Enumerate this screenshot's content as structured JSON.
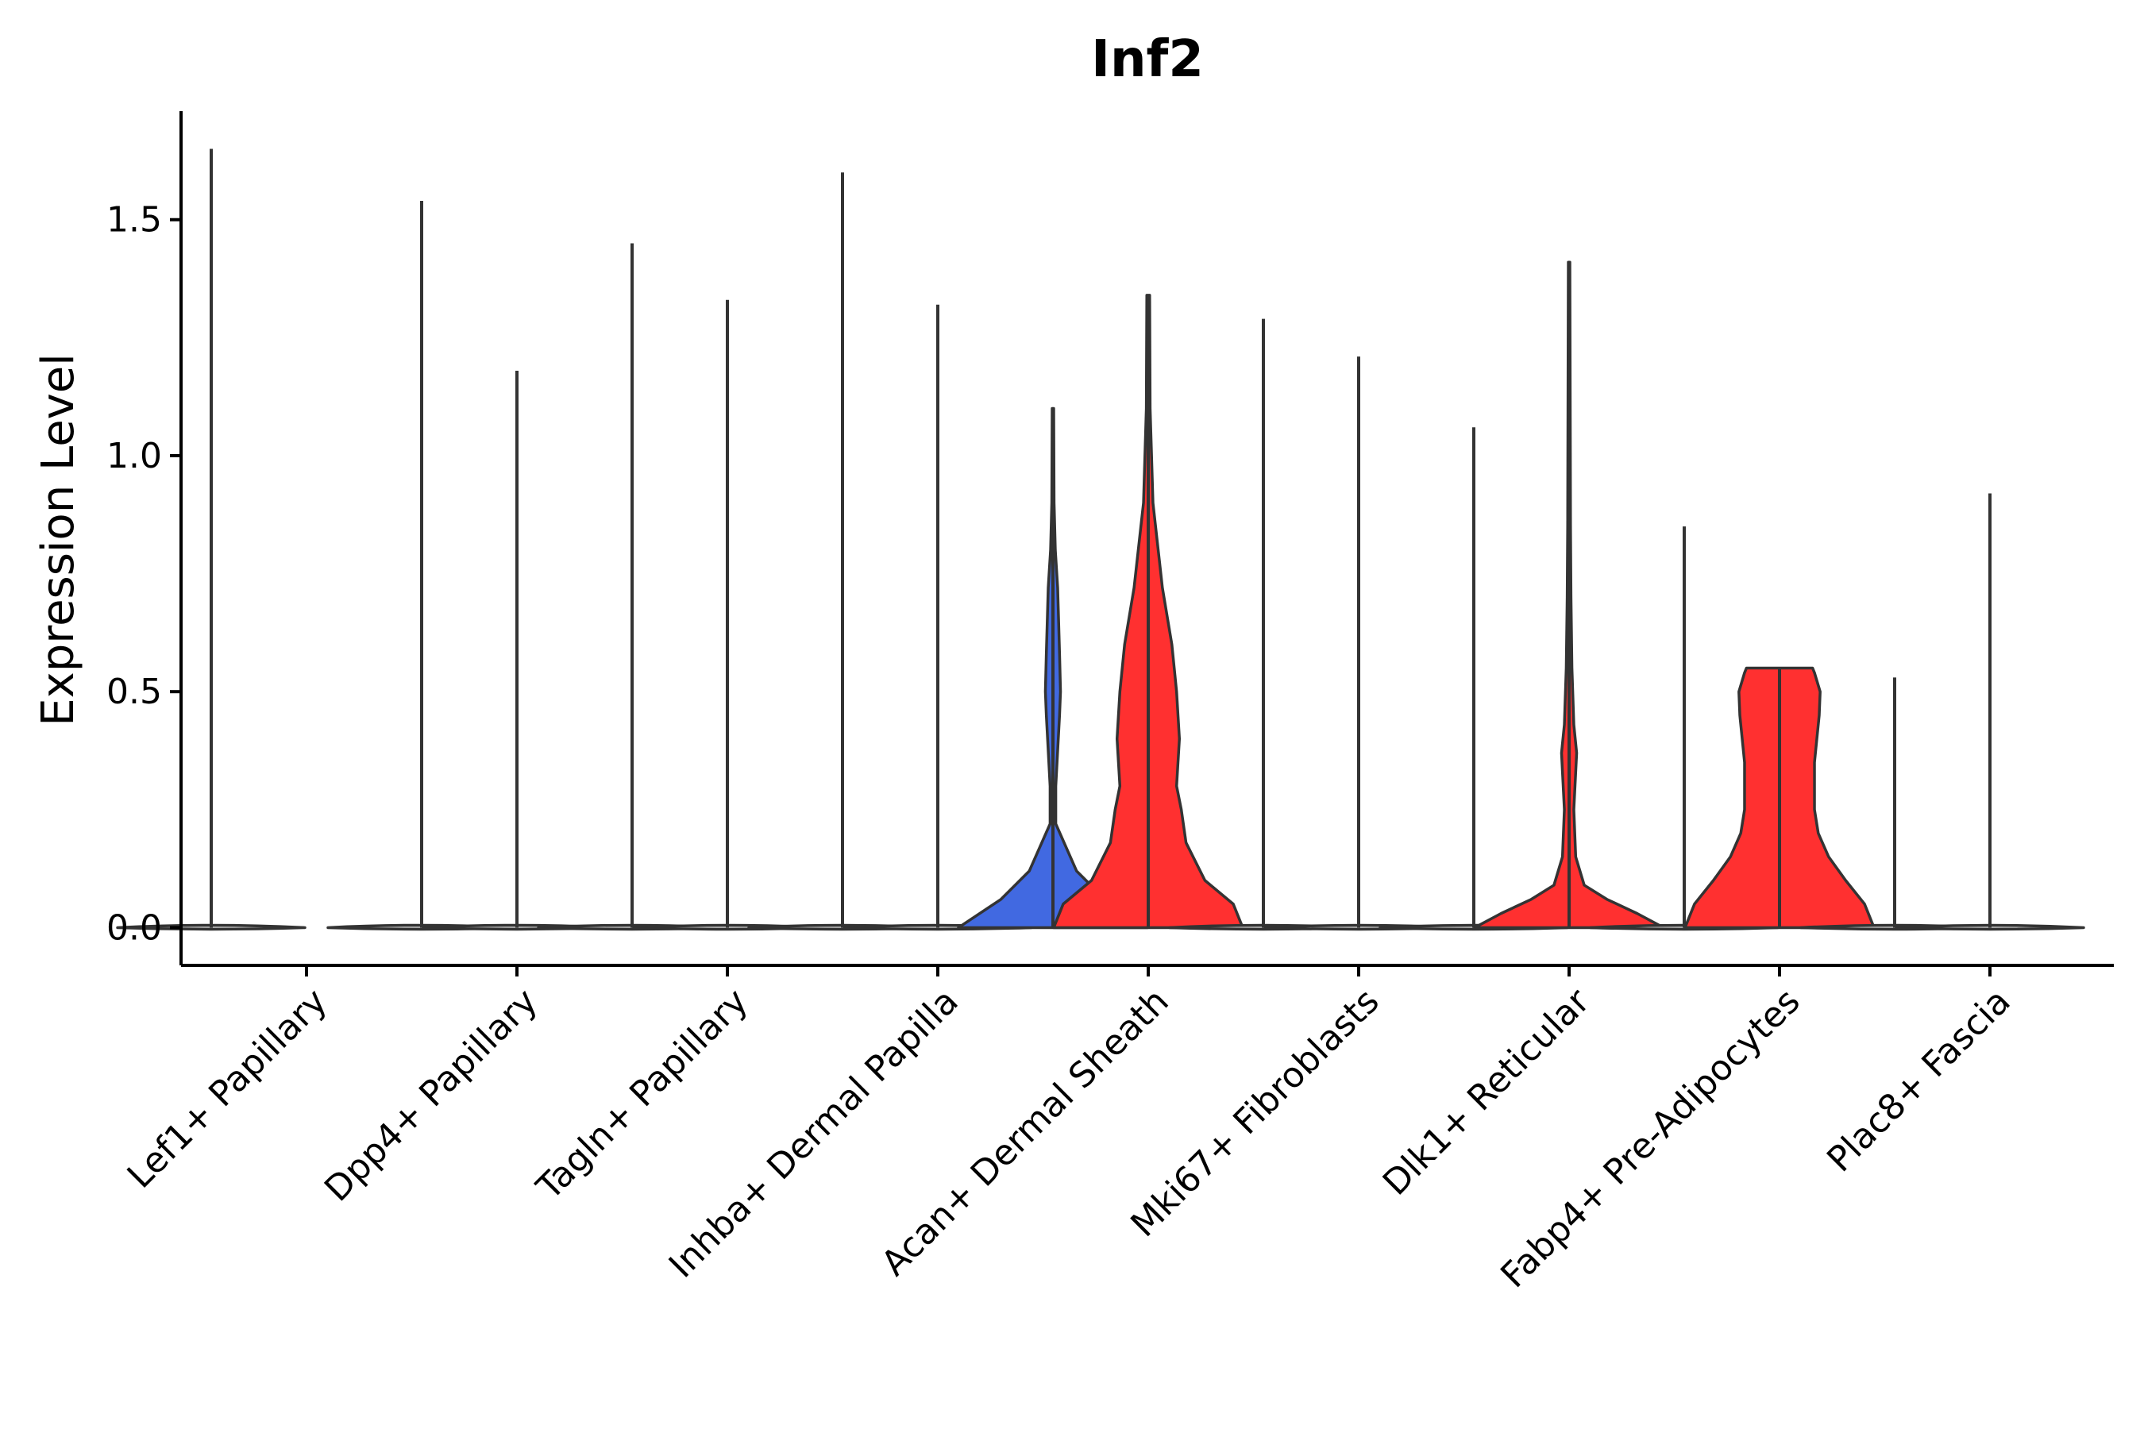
{
  "chart_data": {
    "type": "violin",
    "title": "Inf2",
    "xlabel": "",
    "ylabel": "Expression Level",
    "ylim": [
      -0.08,
      1.73
    ],
    "yticks": [
      0.0,
      0.5,
      1.0,
      1.5
    ],
    "ytick_labels": [
      "0.0",
      "0.5",
      "1.0",
      "1.5"
    ],
    "grid": false,
    "legend": "none",
    "series_colors": {
      "group1": "#4169e1",
      "group2": "#ff3030",
      "zero": "#cccccc"
    },
    "categories": [
      "Lef1+ Papillary",
      "Dpp4+ Papillary",
      "Tagln+ Papillary",
      "Inhba+ Dermal Papilla",
      "Acan+ Dermal Sheath",
      "Mki67+ Fibroblasts",
      "Dlk1+ Reticular",
      "Fabp4+ Pre-Adipocytes",
      "Plac8+ Fascia"
    ],
    "series": [
      {
        "name": "group1",
        "color": "#4169e1",
        "max_values": [
          1.65,
          1.54,
          1.45,
          1.6,
          1.1,
          1.29,
          1.06,
          0.85,
          0.53
        ],
        "density": [
          null,
          null,
          null,
          null,
          [
            [
              0,
              1.0
            ],
            [
              0.06,
              0.55
            ],
            [
              0.12,
              0.25
            ],
            [
              0.22,
              0.03
            ],
            [
              0.3,
              0.03
            ],
            [
              0.45,
              0.07
            ],
            [
              0.5,
              0.08
            ],
            [
              0.58,
              0.07
            ],
            [
              0.72,
              0.05
            ],
            [
              0.8,
              0.025
            ],
            [
              0.9,
              0.012
            ],
            [
              1.1,
              0.008
            ]
          ],
          null,
          null,
          null,
          null
        ]
      },
      {
        "name": "group2",
        "color": "#ff3030",
        "max_values": [
          0,
          1.18,
          1.33,
          1.32,
          1.34,
          1.21,
          1.41,
          0.55,
          0.92
        ],
        "density": [
          null,
          null,
          null,
          null,
          [
            [
              0,
              1.0
            ],
            [
              0.05,
              0.9
            ],
            [
              0.1,
              0.6
            ],
            [
              0.18,
              0.4
            ],
            [
              0.25,
              0.35
            ],
            [
              0.3,
              0.3
            ],
            [
              0.4,
              0.33
            ],
            [
              0.5,
              0.3
            ],
            [
              0.6,
              0.25
            ],
            [
              0.72,
              0.15
            ],
            [
              0.9,
              0.05
            ],
            [
              1.1,
              0.02
            ],
            [
              1.34,
              0.015
            ]
          ],
          null,
          [
            [
              0,
              1.0
            ],
            [
              0.03,
              0.72
            ],
            [
              0.06,
              0.4
            ],
            [
              0.09,
              0.16
            ],
            [
              0.15,
              0.07
            ],
            [
              0.25,
              0.05
            ],
            [
              0.33,
              0.07
            ],
            [
              0.37,
              0.08
            ],
            [
              0.43,
              0.05
            ],
            [
              0.55,
              0.03
            ],
            [
              0.7,
              0.02
            ],
            [
              0.85,
              0.015
            ],
            [
              1.41,
              0.008
            ]
          ],
          [
            [
              0,
              1.0
            ],
            [
              0.05,
              0.9
            ],
            [
              0.1,
              0.7
            ],
            [
              0.15,
              0.52
            ],
            [
              0.2,
              0.41
            ],
            [
              0.25,
              0.37
            ],
            [
              0.35,
              0.37
            ],
            [
              0.45,
              0.42
            ],
            [
              0.5,
              0.43
            ],
            [
              0.54,
              0.37
            ],
            [
              0.55,
              0.35
            ]
          ],
          null
        ]
      }
    ]
  }
}
